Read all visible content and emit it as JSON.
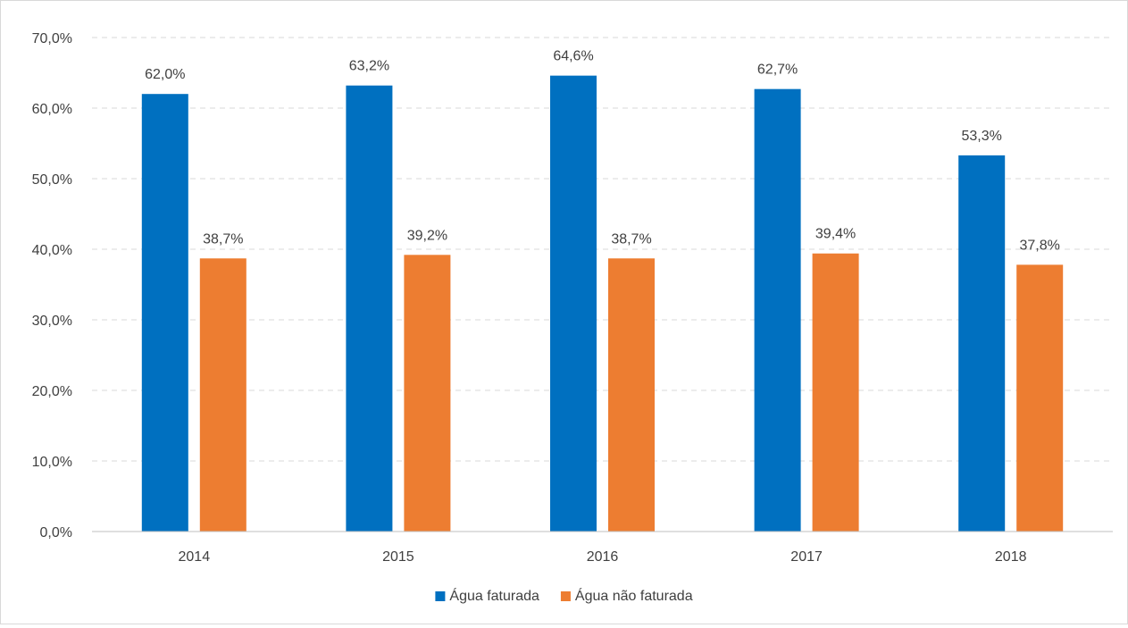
{
  "chart_data": {
    "type": "bar",
    "categories": [
      "2014",
      "2015",
      "2016",
      "2017",
      "2018"
    ],
    "series": [
      {
        "name": "Água faturada",
        "values": [
          62.0,
          63.2,
          64.6,
          62.7,
          53.3
        ],
        "labels": [
          "62,0%",
          "63,2%",
          "64,6%",
          "62,7%",
          "53,3%"
        ],
        "color": "#0070C0"
      },
      {
        "name": "Água não faturada",
        "values": [
          38.7,
          39.2,
          38.7,
          39.4,
          37.8
        ],
        "labels": [
          "38,7%",
          "39,2%",
          "38,7%",
          "39,4%",
          "37,8%"
        ],
        "color": "#ED7D31"
      }
    ],
    "ylim": [
      0,
      70
    ],
    "yticks": [
      0,
      10,
      20,
      30,
      40,
      50,
      60,
      70
    ],
    "ytick_labels": [
      "0,0%",
      "10,0%",
      "20,0%",
      "30,0%",
      "40,0%",
      "50,0%",
      "60,0%",
      "70,0%"
    ],
    "grid": true,
    "legend_position": "bottom",
    "gridline_color": "#d9d9d9",
    "axis_color": "#bfbfbf",
    "text_color": "#404040"
  }
}
